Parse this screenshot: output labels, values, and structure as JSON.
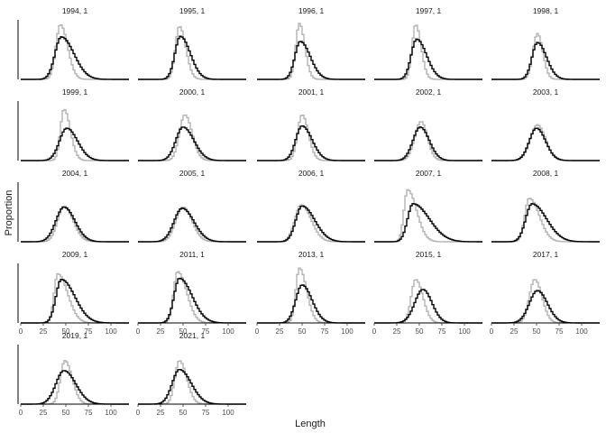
{
  "chart_data": {
    "type": "line",
    "xlabel": "Length",
    "ylabel": "Proportion",
    "xlim": [
      0,
      120
    ],
    "x_ticks": [
      "0",
      "25",
      "50",
      "75",
      "100"
    ],
    "grid": false,
    "legend": "none",
    "series_colors": {
      "observed": "#b3b3b3",
      "expected": "#000000"
    },
    "panels": [
      {
        "title": "1994, 1",
        "obs": {
          "mode": 44,
          "peak": 0.98,
          "sl": 5,
          "sr": 8
        },
        "exp": {
          "mode": 45,
          "peak": 0.76,
          "sl": 7,
          "sr": 14
        }
      },
      {
        "title": "1995, 1",
        "obs": {
          "mode": 46,
          "peak": 0.95,
          "sl": 4.5,
          "sr": 7
        },
        "exp": {
          "mode": 47,
          "peak": 0.77,
          "sl": 6,
          "sr": 11
        }
      },
      {
        "title": "1996, 1",
        "obs": {
          "mode": 47,
          "peak": 1.0,
          "sl": 4,
          "sr": 6
        },
        "exp": {
          "mode": 48,
          "peak": 0.68,
          "sl": 6,
          "sr": 11
        }
      },
      {
        "title": "1997, 1",
        "obs": {
          "mode": 46,
          "peak": 0.98,
          "sl": 4,
          "sr": 6
        },
        "exp": {
          "mode": 47,
          "peak": 0.72,
          "sl": 6,
          "sr": 11
        }
      },
      {
        "title": "1998, 1",
        "obs": {
          "mode": 51,
          "peak": 0.82,
          "sl": 5,
          "sr": 6
        },
        "exp": {
          "mode": 51,
          "peak": 0.66,
          "sl": 6,
          "sr": 10
        }
      },
      {
        "title": "1999, 1",
        "obs": {
          "mode": 48,
          "peak": 0.92,
          "sl": 4,
          "sr": 7
        },
        "exp": {
          "mode": 51,
          "peak": 0.58,
          "sl": 8,
          "sr": 12
        }
      },
      {
        "title": "2000, 1",
        "obs": {
          "mode": 52,
          "peak": 0.82,
          "sl": 6,
          "sr": 8
        },
        "exp": {
          "mode": 50,
          "peak": 0.6,
          "sl": 8,
          "sr": 12
        }
      },
      {
        "title": "2001, 1",
        "obs": {
          "mode": 50,
          "peak": 0.82,
          "sl": 5,
          "sr": 7
        },
        "exp": {
          "mode": 50,
          "peak": 0.62,
          "sl": 7,
          "sr": 11
        }
      },
      {
        "title": "2002, 1",
        "obs": {
          "mode": 52,
          "peak": 0.7,
          "sl": 7,
          "sr": 7
        },
        "exp": {
          "mode": 51,
          "peak": 0.6,
          "sl": 8,
          "sr": 10
        }
      },
      {
        "title": "2003, 1",
        "obs": {
          "mode": 51,
          "peak": 0.64,
          "sl": 8,
          "sr": 9
        },
        "exp": {
          "mode": 50,
          "peak": 0.58,
          "sl": 8,
          "sr": 10
        }
      },
      {
        "title": "2004, 1",
        "obs": {
          "mode": 48,
          "peak": 0.64,
          "sl": 7,
          "sr": 10
        },
        "exp": {
          "mode": 48,
          "peak": 0.62,
          "sl": 9,
          "sr": 12
        }
      },
      {
        "title": "2005, 1",
        "obs": {
          "mode": 50,
          "peak": 0.62,
          "sl": 8,
          "sr": 10
        },
        "exp": {
          "mode": 49,
          "peak": 0.6,
          "sl": 9,
          "sr": 13
        }
      },
      {
        "title": "2006, 1",
        "obs": {
          "mode": 49,
          "peak": 0.66,
          "sl": 7,
          "sr": 11
        },
        "exp": {
          "mode": 50,
          "peak": 0.64,
          "sl": 7,
          "sr": 14
        }
      },
      {
        "title": "2007, 1",
        "obs": {
          "mode": 37,
          "peak": 0.93,
          "sl": 4,
          "sr": 10
        },
        "exp": {
          "mode": 43,
          "peak": 0.68,
          "sl": 6,
          "sr": 18
        }
      },
      {
        "title": "2008, 1",
        "obs": {
          "mode": 42,
          "peak": 0.78,
          "sl": 5,
          "sr": 11
        },
        "exp": {
          "mode": 45,
          "peak": 0.68,
          "sl": 7,
          "sr": 16
        }
      },
      {
        "title": "2009, 1",
        "obs": {
          "mode": 41,
          "peak": 0.88,
          "sl": 4,
          "sr": 11
        },
        "exp": {
          "mode": 45,
          "peak": 0.78,
          "sl": 6,
          "sr": 15
        }
      },
      {
        "title": "2011, 1",
        "obs": {
          "mode": 44,
          "peak": 0.92,
          "sl": 4.5,
          "sr": 10
        },
        "exp": {
          "mode": 46,
          "peak": 0.8,
          "sl": 6,
          "sr": 14
        }
      },
      {
        "title": "2013, 1",
        "obs": {
          "mode": 47,
          "peak": 0.98,
          "sl": 4,
          "sr": 8
        },
        "exp": {
          "mode": 50,
          "peak": 0.68,
          "sl": 7,
          "sr": 11
        }
      },
      {
        "title": "2015, 1",
        "obs": {
          "mode": 46,
          "peak": 0.78,
          "sl": 5,
          "sr": 8
        },
        "exp": {
          "mode": 54,
          "peak": 0.6,
          "sl": 9,
          "sr": 10
        }
      },
      {
        "title": "2017, 1",
        "obs": {
          "mode": 48,
          "peak": 0.78,
          "sl": 6,
          "sr": 8
        },
        "exp": {
          "mode": 51,
          "peak": 0.58,
          "sl": 9,
          "sr": 11
        }
      },
      {
        "title": "2019, 1",
        "obs": {
          "mode": 49,
          "peak": 0.78,
          "sl": 5,
          "sr": 8
        },
        "exp": {
          "mode": 48,
          "peak": 0.6,
          "sl": 9,
          "sr": 13
        }
      },
      {
        "title": "2021, 1",
        "obs": {
          "mode": 46,
          "peak": 0.78,
          "sl": 5,
          "sr": 8
        },
        "exp": {
          "mode": 46,
          "peak": 0.62,
          "sl": 8,
          "sr": 13
        }
      }
    ]
  }
}
